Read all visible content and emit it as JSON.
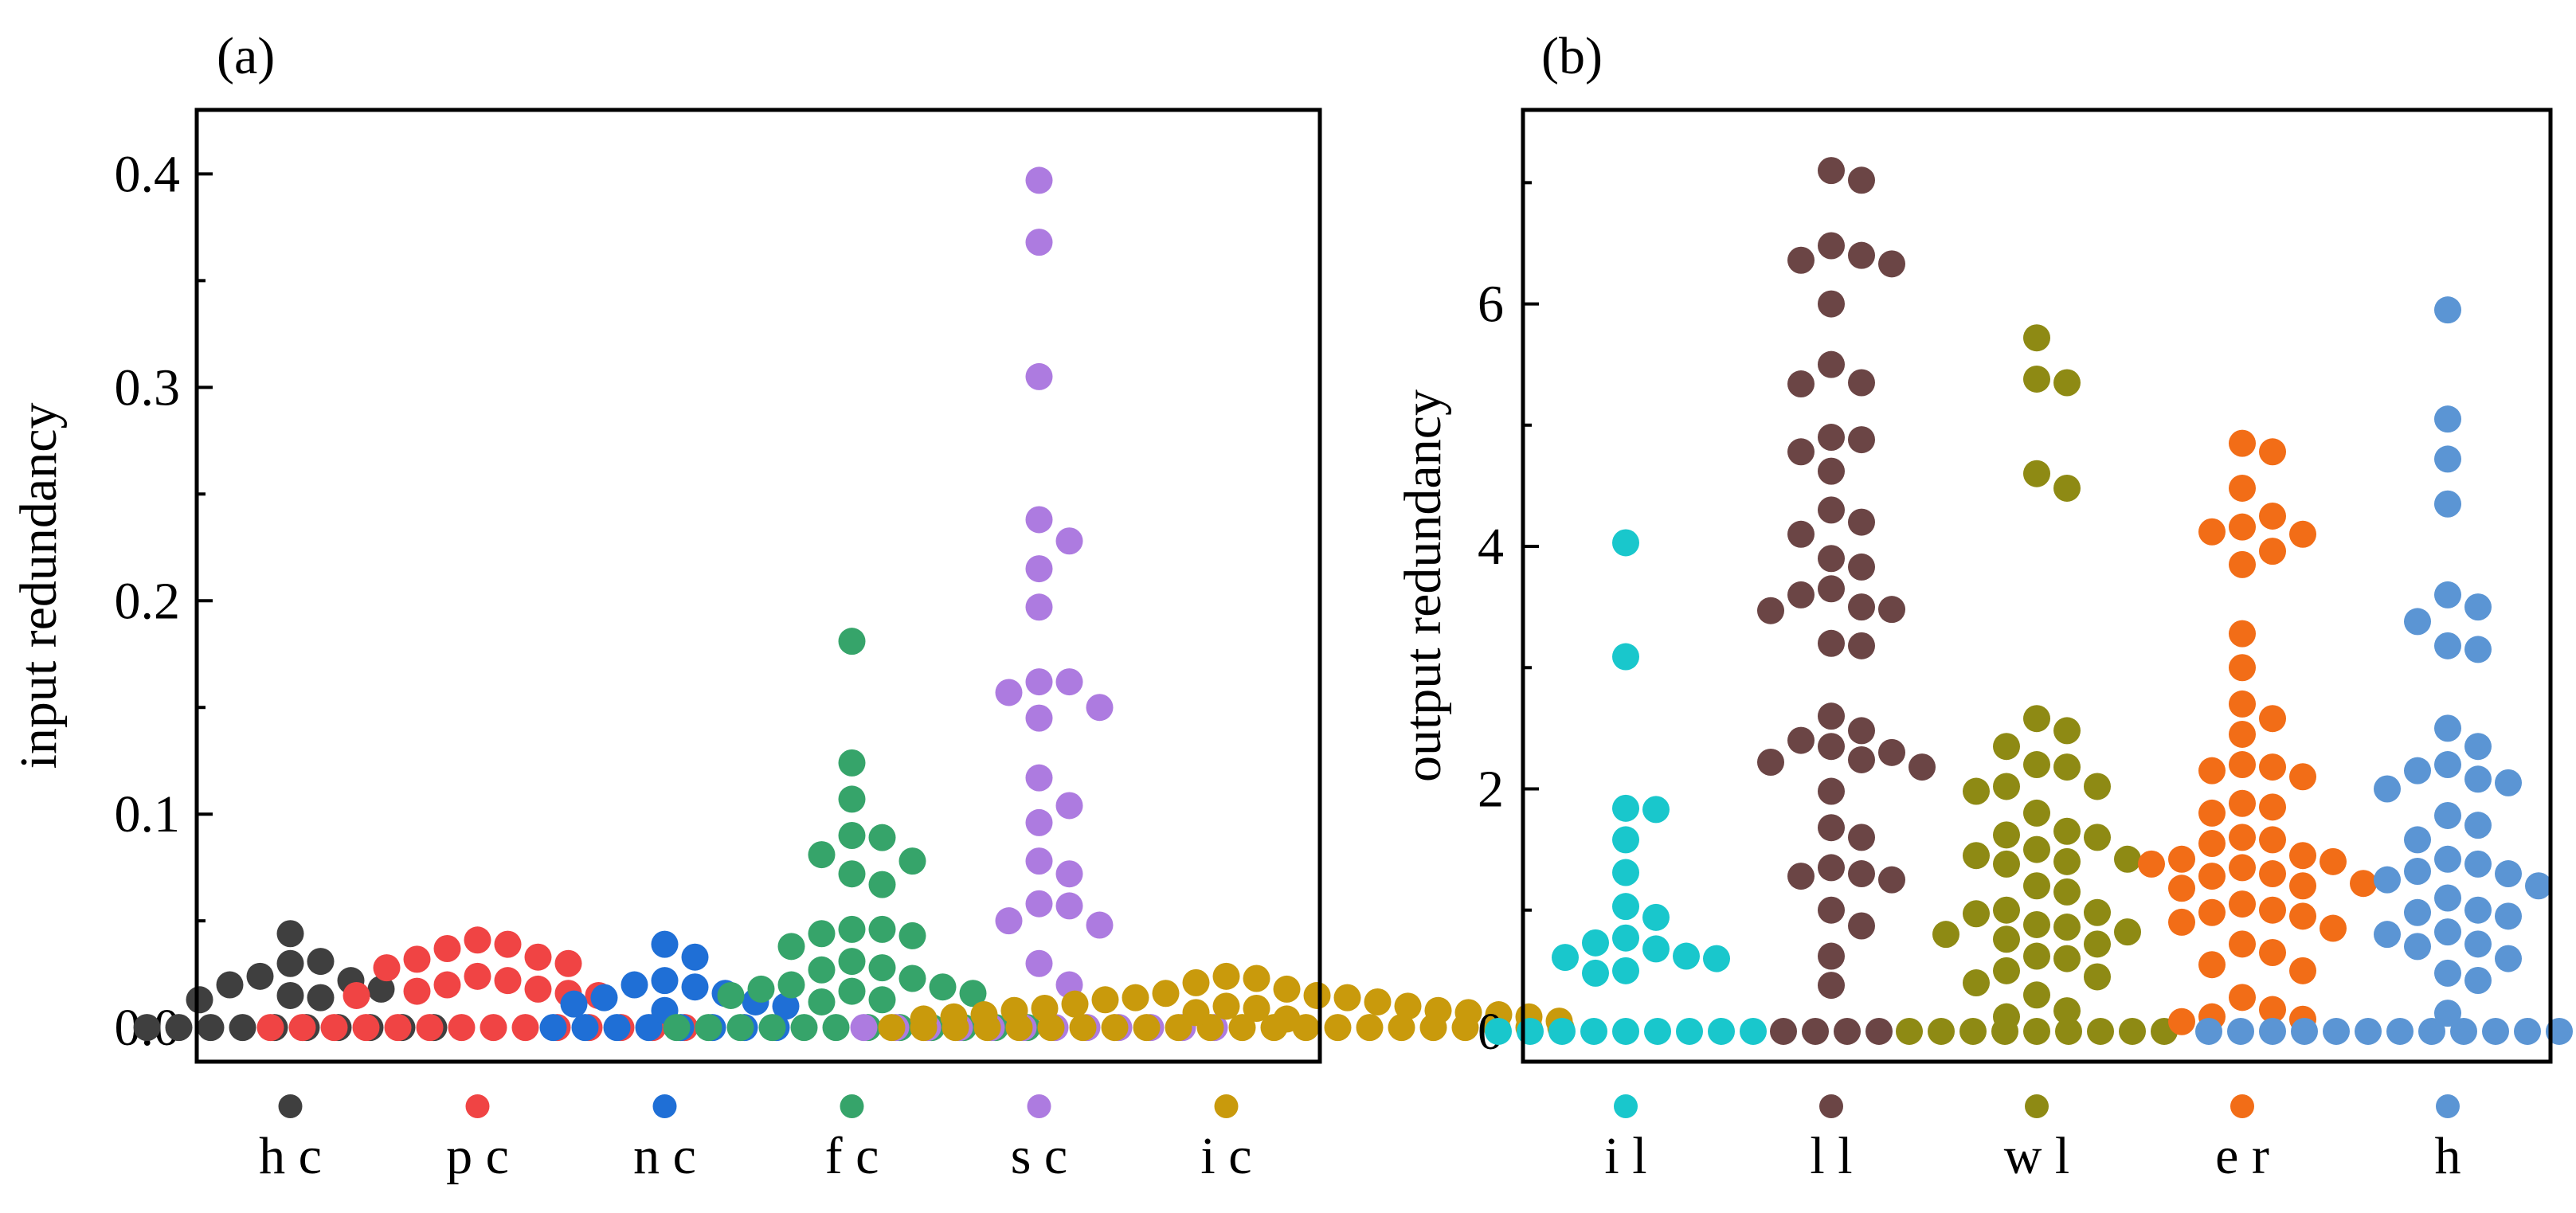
{
  "chart_data": [
    {
      "type": "scatter",
      "panel_label": "(a)",
      "ylabel": "input redundancy",
      "xlabel": "",
      "ylim": [
        -0.016,
        0.43
      ],
      "yticks": [
        0.0,
        0.1,
        0.2,
        0.3,
        0.4
      ],
      "ytick_labels": [
        "0.0",
        "0.1",
        "0.2",
        "0.3",
        "0.4"
      ],
      "grid": false,
      "legend": "markers below x-axis",
      "categories": [
        {
          "label": "h c",
          "color": "#3f3f3f",
          "top_values": [
            0.044,
            0.031,
            0.03,
            0.024,
            0.022,
            0.02,
            0.018,
            0.015,
            0.014,
            0.013
          ],
          "zero_count": 10
        },
        {
          "label": "p c",
          "color": "#f04444",
          "top_values": [
            0.041,
            0.039,
            0.037,
            0.033,
            0.032,
            0.03,
            0.028,
            0.024,
            0.022,
            0.02,
            0.018,
            0.017,
            0.016,
            0.015,
            0.015
          ],
          "zero_count": 14
        },
        {
          "label": "n c",
          "color": "#1f6fd6",
          "top_values": [
            0.039,
            0.033,
            0.022,
            0.02,
            0.019,
            0.016,
            0.014,
            0.012,
            0.011,
            0.01,
            0.008
          ],
          "zero_count": 8
        },
        {
          "label": "f c",
          "color": "#36a46a",
          "top_values": [
            0.181,
            0.124,
            0.107,
            0.09,
            0.089,
            0.081,
            0.078,
            0.072,
            0.067,
            0.046,
            0.046,
            0.044,
            0.043,
            0.038,
            0.031,
            0.028,
            0.027,
            0.023,
            0.02,
            0.019,
            0.018,
            0.017,
            0.016,
            0.015,
            0.013,
            0.012
          ],
          "zero_count": 12
        },
        {
          "label": "s c",
          "color": "#ad7be0",
          "top_values": [
            0.397,
            0.368,
            0.305,
            0.238,
            0.228,
            0.215,
            0.197,
            0.162,
            0.162,
            0.157,
            0.15,
            0.145,
            0.117,
            0.104,
            0.096,
            0.078,
            0.072,
            0.058,
            0.057,
            0.05,
            0.048,
            0.03,
            0.02
          ],
          "zero_count": 12
        },
        {
          "label": "i c",
          "color": "#c99a0c",
          "top_values": [
            0.024,
            0.023,
            0.021,
            0.018,
            0.016,
            0.015,
            0.014,
            0.014,
            0.013,
            0.012,
            0.011,
            0.01,
            0.01,
            0.009,
            0.009,
            0.008,
            0.008,
            0.007,
            0.007,
            0.006,
            0.006,
            0.005,
            0.005,
            0.004,
            0.004,
            0.003
          ],
          "zero_count": 22
        }
      ]
    },
    {
      "type": "scatter",
      "panel_label": "(b)",
      "ylabel": "output redundancy",
      "xlabel": "",
      "ylim": [
        -0.25,
        7.6
      ],
      "yticks": [
        0,
        2,
        4,
        6
      ],
      "ytick_labels": [
        "0",
        "2",
        "4",
        "6"
      ],
      "grid": false,
      "legend": "markers below x-axis",
      "categories": [
        {
          "label": "i l",
          "color": "#19c7cc",
          "top_values": [
            4.03,
            3.09,
            1.84,
            1.83,
            1.58,
            1.31,
            1.03,
            0.94,
            0.77,
            0.73,
            0.68,
            0.62,
            0.61,
            0.6,
            0.5,
            0.48
          ],
          "zero_count": 9
        },
        {
          "label": "l l",
          "color": "#6b4545",
          "top_values": [
            7.1,
            7.02,
            6.48,
            6.4,
            6.36,
            6.33,
            6.0,
            5.5,
            5.35,
            5.34,
            4.9,
            4.88,
            4.78,
            4.62,
            4.3,
            4.2,
            4.1,
            3.9,
            3.83,
            3.65,
            3.6,
            3.5,
            3.48,
            3.47,
            3.2,
            3.18,
            2.6,
            2.48,
            2.4,
            2.35,
            2.3,
            2.24,
            2.22,
            2.18,
            1.98,
            1.68,
            1.6,
            1.35,
            1.3,
            1.28,
            1.25,
            1.0,
            0.87,
            0.62,
            0.38
          ],
          "zero_count": 4
        },
        {
          "label": "w l",
          "color": "#8e8a14",
          "top_values": [
            5.72,
            5.38,
            5.35,
            4.6,
            4.48,
            2.58,
            2.48,
            2.35,
            2.2,
            2.18,
            2.02,
            2.02,
            1.98,
            1.8,
            1.65,
            1.62,
            1.6,
            1.5,
            1.45,
            1.42,
            1.4,
            1.38,
            1.2,
            1.15,
            1.0,
            0.98,
            0.97,
            0.88,
            0.86,
            0.82,
            0.8,
            0.76,
            0.72,
            0.62,
            0.6,
            0.5,
            0.45,
            0.4,
            0.3,
            0.17,
            0.12
          ],
          "zero_count": 9
        },
        {
          "label": "e r",
          "color": "#f26d17",
          "top_values": [
            4.85,
            4.78,
            4.48,
            4.25,
            4.16,
            4.12,
            4.1,
            3.96,
            3.85,
            3.28,
            3.0,
            2.7,
            2.58,
            2.45,
            2.2,
            2.18,
            2.15,
            2.1,
            1.88,
            1.85,
            1.8,
            1.6,
            1.58,
            1.55,
            1.45,
            1.42,
            1.4,
            1.38,
            1.35,
            1.3,
            1.28,
            1.22,
            1.2,
            1.18,
            1.05,
            1.0,
            0.98,
            0.95,
            0.9,
            0.85,
            0.72,
            0.65,
            0.55,
            0.5,
            0.28,
            0.18,
            0.12,
            0.1,
            0.08
          ],
          "zero_count": 0
        },
        {
          "label": "h",
          "color": "#5b95d4",
          "top_values": [
            5.95,
            5.05,
            4.72,
            4.35,
            3.6,
            3.5,
            3.38,
            3.18,
            3.15,
            2.5,
            2.35,
            2.2,
            2.15,
            2.08,
            2.05,
            2.0,
            1.78,
            1.7,
            1.58,
            1.42,
            1.38,
            1.32,
            1.3,
            1.25,
            1.2,
            1.1,
            1.0,
            0.98,
            0.95,
            0.82,
            0.8,
            0.72,
            0.7,
            0.6,
            0.48,
            0.42,
            0.15
          ],
          "zero_count": 16
        }
      ]
    }
  ]
}
